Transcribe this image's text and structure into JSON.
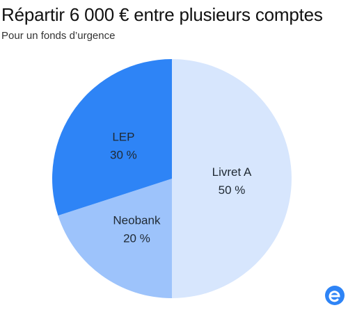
{
  "title": "Répartir 6 000 € entre plusieurs comptes",
  "subtitle": "Pour un fonds d’urgence",
  "chart_data": {
    "type": "pie",
    "title": "Répartir 6 000 € entre plusieurs comptes",
    "subtitle": "Pour un fonds d’urgence",
    "categories": [
      "Livret A",
      "Neobank",
      "LEP"
    ],
    "values": [
      50,
      20,
      30
    ],
    "value_labels": [
      "50 %",
      "20 %",
      "30 %"
    ],
    "colors": [
      "#d7e6fd",
      "#9dc3fb",
      "#2e84f6"
    ],
    "label_colors": [
      "#1f2933",
      "#1f2933",
      "#1f2933"
    ],
    "start": "12 o'clock, clockwise",
    "legend": "none"
  },
  "brand": {
    "logo": "e-logo-icon",
    "color": "#2e84f6"
  }
}
